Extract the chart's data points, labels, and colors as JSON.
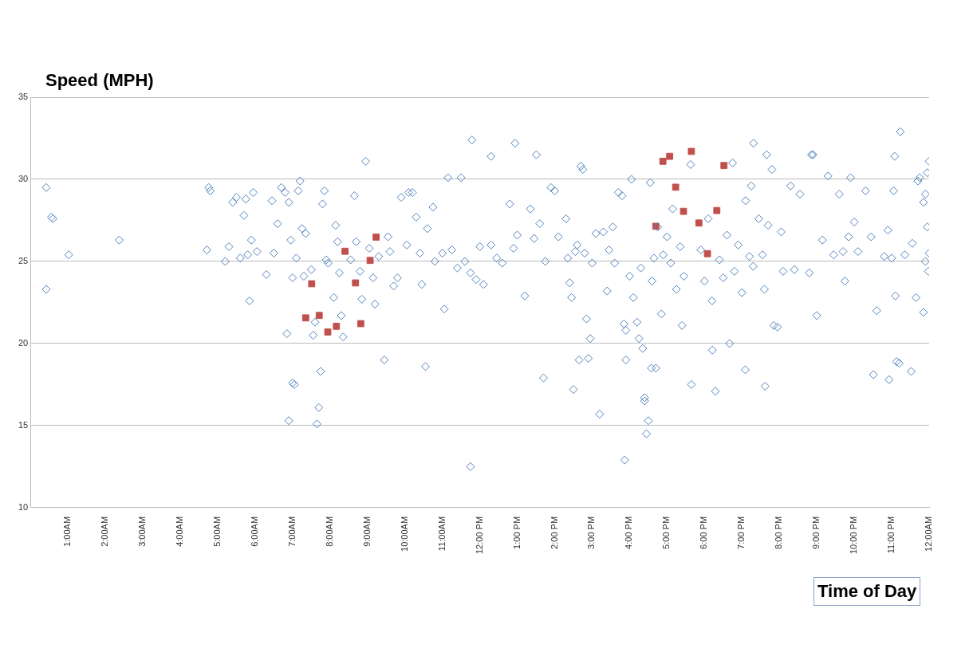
{
  "chart_data": {
    "type": "scatter",
    "ylabel": "Speed (MPH)",
    "xlabel": "Time of Day",
    "xlim": [
      0,
      24
    ],
    "xticks": [
      {
        "value": 1,
        "label": "1:00AM"
      },
      {
        "value": 2,
        "label": "2:00AM"
      },
      {
        "value": 3,
        "label": "3:00AM"
      },
      {
        "value": 4,
        "label": "4:00AM"
      },
      {
        "value": 5,
        "label": "5:00AM"
      },
      {
        "value": 6,
        "label": "6:00AM"
      },
      {
        "value": 7,
        "label": "7:00AM"
      },
      {
        "value": 8,
        "label": "8:00AM"
      },
      {
        "value": 9,
        "label": "9:00AM"
      },
      {
        "value": 10,
        "label": "10:00AM"
      },
      {
        "value": 11,
        "label": "11:00AM"
      },
      {
        "value": 12,
        "label": "12:00 PM"
      },
      {
        "value": 13,
        "label": "1:00 PM"
      },
      {
        "value": 14,
        "label": "2:00 PM"
      },
      {
        "value": 15,
        "label": "3:00 PM"
      },
      {
        "value": 16,
        "label": "4:00 PM"
      },
      {
        "value": 17,
        "label": "5:00 PM"
      },
      {
        "value": 18,
        "label": "6:00 PM"
      },
      {
        "value": 19,
        "label": "7:00 PM"
      },
      {
        "value": 20,
        "label": "8:00 PM"
      },
      {
        "value": 21,
        "label": "9:00 PM"
      },
      {
        "value": 22,
        "label": "10:00 PM"
      },
      {
        "value": 23,
        "label": "11:00 PM"
      },
      {
        "value": 24,
        "label": "12:00AM"
      }
    ],
    "ylim": [
      10,
      35
    ],
    "yticks": [
      10,
      15,
      20,
      25,
      30,
      35
    ],
    "grid": "y",
    "legend": false,
    "series": [
      {
        "color": "#4f81bd",
        "marker": "diamond",
        "x": [
          0.42,
          0.56,
          0.6,
          1.02,
          0.42,
          2.37,
          4.71,
          4.76,
          4.8,
          5.2,
          5.3,
          5.4,
          5.5,
          5.6,
          5.7,
          5.75,
          5.8,
          5.85,
          5.9,
          5.95,
          6.05,
          6.3,
          6.45,
          6.5,
          6.6,
          6.7,
          6.8,
          6.9,
          6.95,
          7.0,
          6.85,
          6.9,
          7.0,
          7.05,
          7.15,
          7.2,
          7.25,
          7.1,
          7.3,
          7.35,
          7.5,
          7.55,
          7.6,
          7.65,
          7.7,
          7.75,
          7.8,
          7.85,
          7.9,
          7.95,
          8.1,
          8.15,
          8.2,
          8.25,
          8.3,
          8.35,
          8.55,
          8.65,
          8.7,
          8.8,
          8.85,
          8.95,
          9.05,
          9.15,
          9.2,
          9.3,
          9.45,
          9.55,
          9.6,
          9.7,
          9.8,
          9.9,
          10.05,
          10.1,
          10.2,
          10.3,
          10.4,
          10.45,
          10.55,
          10.6,
          10.75,
          10.8,
          11.0,
          11.05,
          11.15,
          11.25,
          11.4,
          11.5,
          11.79,
          12.94,
          12.3,
          13.51,
          11.75,
          15.87,
          11.6,
          11.75,
          11.9,
          12.0,
          12.1,
          12.3,
          12.45,
          12.6,
          12.8,
          12.9,
          13.0,
          13.2,
          13.35,
          13.45,
          13.6,
          13.7,
          13.75,
          13.9,
          14.0,
          14.1,
          14.3,
          14.35,
          14.4,
          14.45,
          14.5,
          14.55,
          14.6,
          14.65,
          14.7,
          14.75,
          14.8,
          14.85,
          14.9,
          14.95,
          15.0,
          15.1,
          15.2,
          15.3,
          15.4,
          15.45,
          15.55,
          15.6,
          15.7,
          15.8,
          15.85,
          15.9,
          15.9,
          16.0,
          16.05,
          16.1,
          16.2,
          16.25,
          16.3,
          16.35,
          16.4,
          16.4,
          16.45,
          16.5,
          16.55,
          16.6,
          16.65,
          16.7,
          16.75,
          16.85,
          16.9,
          17.0,
          17.1,
          17.15,
          17.25,
          17.35,
          17.4,
          17.45,
          17.63,
          16.58,
          17.65,
          18.29,
          19.62,
          18.21,
          18.67,
          19.09,
          19.31,
          19.66,
          20.86,
          23.23,
          23.08,
          22.51,
          22.93,
          23.13,
          23.52,
          17.9,
          18.0,
          18.1,
          18.2,
          18.4,
          18.5,
          18.6,
          18.75,
          18.8,
          18.9,
          19.0,
          19.1,
          19.2,
          19.25,
          19.3,
          19.45,
          19.55,
          19.6,
          19.7,
          19.8,
          19.85,
          19.95,
          20.05,
          20.1,
          20.3,
          20.4,
          20.55,
          20.8,
          20.9,
          21.0,
          21.15,
          21.3,
          21.45,
          21.6,
          21.7,
          21.75,
          21.85,
          21.9,
          22.0,
          22.1,
          22.3,
          22.45,
          22.6,
          22.8,
          22.9,
          23.0,
          23.05,
          23.1,
          23.2,
          23.35,
          23.55,
          23.65,
          23.75,
          23.85,
          23.9,
          24.0,
          23.95,
          24.0,
          23.9,
          23.85,
          23.7,
          23.95,
          23.98
        ],
        "values": [
          29.5,
          27.7,
          27.6,
          25.4,
          23.3,
          26.3,
          25.7,
          29.5,
          29.3,
          25.0,
          25.9,
          28.6,
          28.9,
          25.2,
          27.8,
          28.8,
          25.4,
          22.6,
          26.3,
          29.2,
          25.6,
          24.2,
          28.7,
          25.5,
          27.3,
          29.5,
          29.2,
          28.6,
          26.3,
          24.0,
          20.6,
          15.3,
          17.6,
          17.5,
          29.3,
          29.9,
          27.0,
          25.2,
          24.1,
          26.7,
          24.5,
          20.5,
          21.3,
          15.1,
          16.1,
          18.3,
          28.5,
          29.3,
          25.1,
          24.9,
          22.8,
          27.2,
          26.2,
          24.3,
          21.7,
          20.4,
          25.1,
          29.0,
          26.2,
          24.4,
          22.7,
          31.1,
          25.8,
          24.0,
          22.4,
          25.3,
          19.0,
          26.5,
          25.6,
          23.5,
          24.0,
          28.9,
          26.0,
          29.2,
          29.2,
          27.7,
          25.5,
          23.6,
          18.6,
          27.0,
          28.3,
          25.0,
          25.5,
          22.1,
          30.1,
          25.7,
          24.6,
          30.1,
          32.4,
          32.2,
          31.4,
          31.5,
          12.5,
          12.9,
          25.0,
          24.3,
          23.9,
          25.9,
          23.6,
          26.0,
          25.2,
          24.9,
          28.5,
          25.8,
          26.6,
          22.9,
          28.2,
          26.4,
          27.3,
          17.9,
          25.0,
          29.5,
          29.3,
          26.5,
          27.6,
          25.2,
          23.7,
          22.8,
          17.2,
          25.6,
          26.0,
          19.0,
          30.8,
          30.6,
          25.5,
          21.5,
          19.1,
          20.3,
          24.9,
          26.7,
          15.7,
          26.8,
          23.2,
          25.7,
          27.1,
          24.9,
          29.2,
          29.0,
          21.2,
          20.8,
          19.0,
          24.1,
          30.0,
          22.8,
          21.3,
          20.3,
          24.6,
          19.7,
          16.5,
          16.7,
          14.5,
          15.3,
          29.8,
          23.8,
          25.2,
          18.5,
          27.1,
          21.8,
          25.4,
          26.5,
          24.9,
          28.2,
          23.3,
          25.9,
          21.1,
          24.1,
          30.9,
          18.5,
          17.5,
          17.1,
          17.4,
          19.6,
          20.0,
          18.4,
          32.2,
          31.5,
          31.5,
          32.9,
          31.4,
          18.1,
          17.8,
          18.9,
          18.3,
          25.7,
          23.8,
          27.6,
          22.6,
          25.1,
          24.0,
          26.6,
          31.0,
          24.4,
          26.0,
          23.1,
          28.7,
          25.3,
          29.6,
          24.7,
          27.6,
          25.4,
          23.3,
          27.2,
          30.6,
          21.1,
          21.0,
          26.8,
          24.4,
          29.6,
          24.5,
          29.1,
          24.3,
          31.5,
          21.7,
          26.3,
          30.2,
          25.4,
          29.1,
          25.6,
          23.8,
          26.5,
          30.1,
          27.4,
          25.6,
          29.3,
          26.5,
          22.0,
          25.3,
          26.9,
          25.2,
          29.3,
          22.9,
          18.8,
          25.4,
          26.1,
          22.8,
          30.1,
          28.6,
          25.0,
          25.5,
          30.4,
          31.1,
          29.1,
          21.9,
          29.9,
          27.1,
          24.4
        ]
      },
      {
        "color": "#c0504d",
        "marker": "square",
        "x": [
          7.35,
          7.51,
          7.71,
          7.94,
          8.17,
          8.4,
          8.68,
          8.82,
          9.07,
          9.23,
          16.7,
          16.89,
          17.07,
          17.23,
          17.44,
          17.65,
          17.85,
          18.08,
          18.33,
          18.52
        ],
        "values": [
          21.56,
          23.64,
          21.71,
          20.7,
          21.05,
          25.62,
          23.69,
          21.21,
          25.06,
          26.48,
          27.14,
          31.1,
          31.4,
          29.52,
          28.05,
          31.7,
          27.34,
          25.47,
          28.1,
          30.84
        ]
      }
    ]
  }
}
